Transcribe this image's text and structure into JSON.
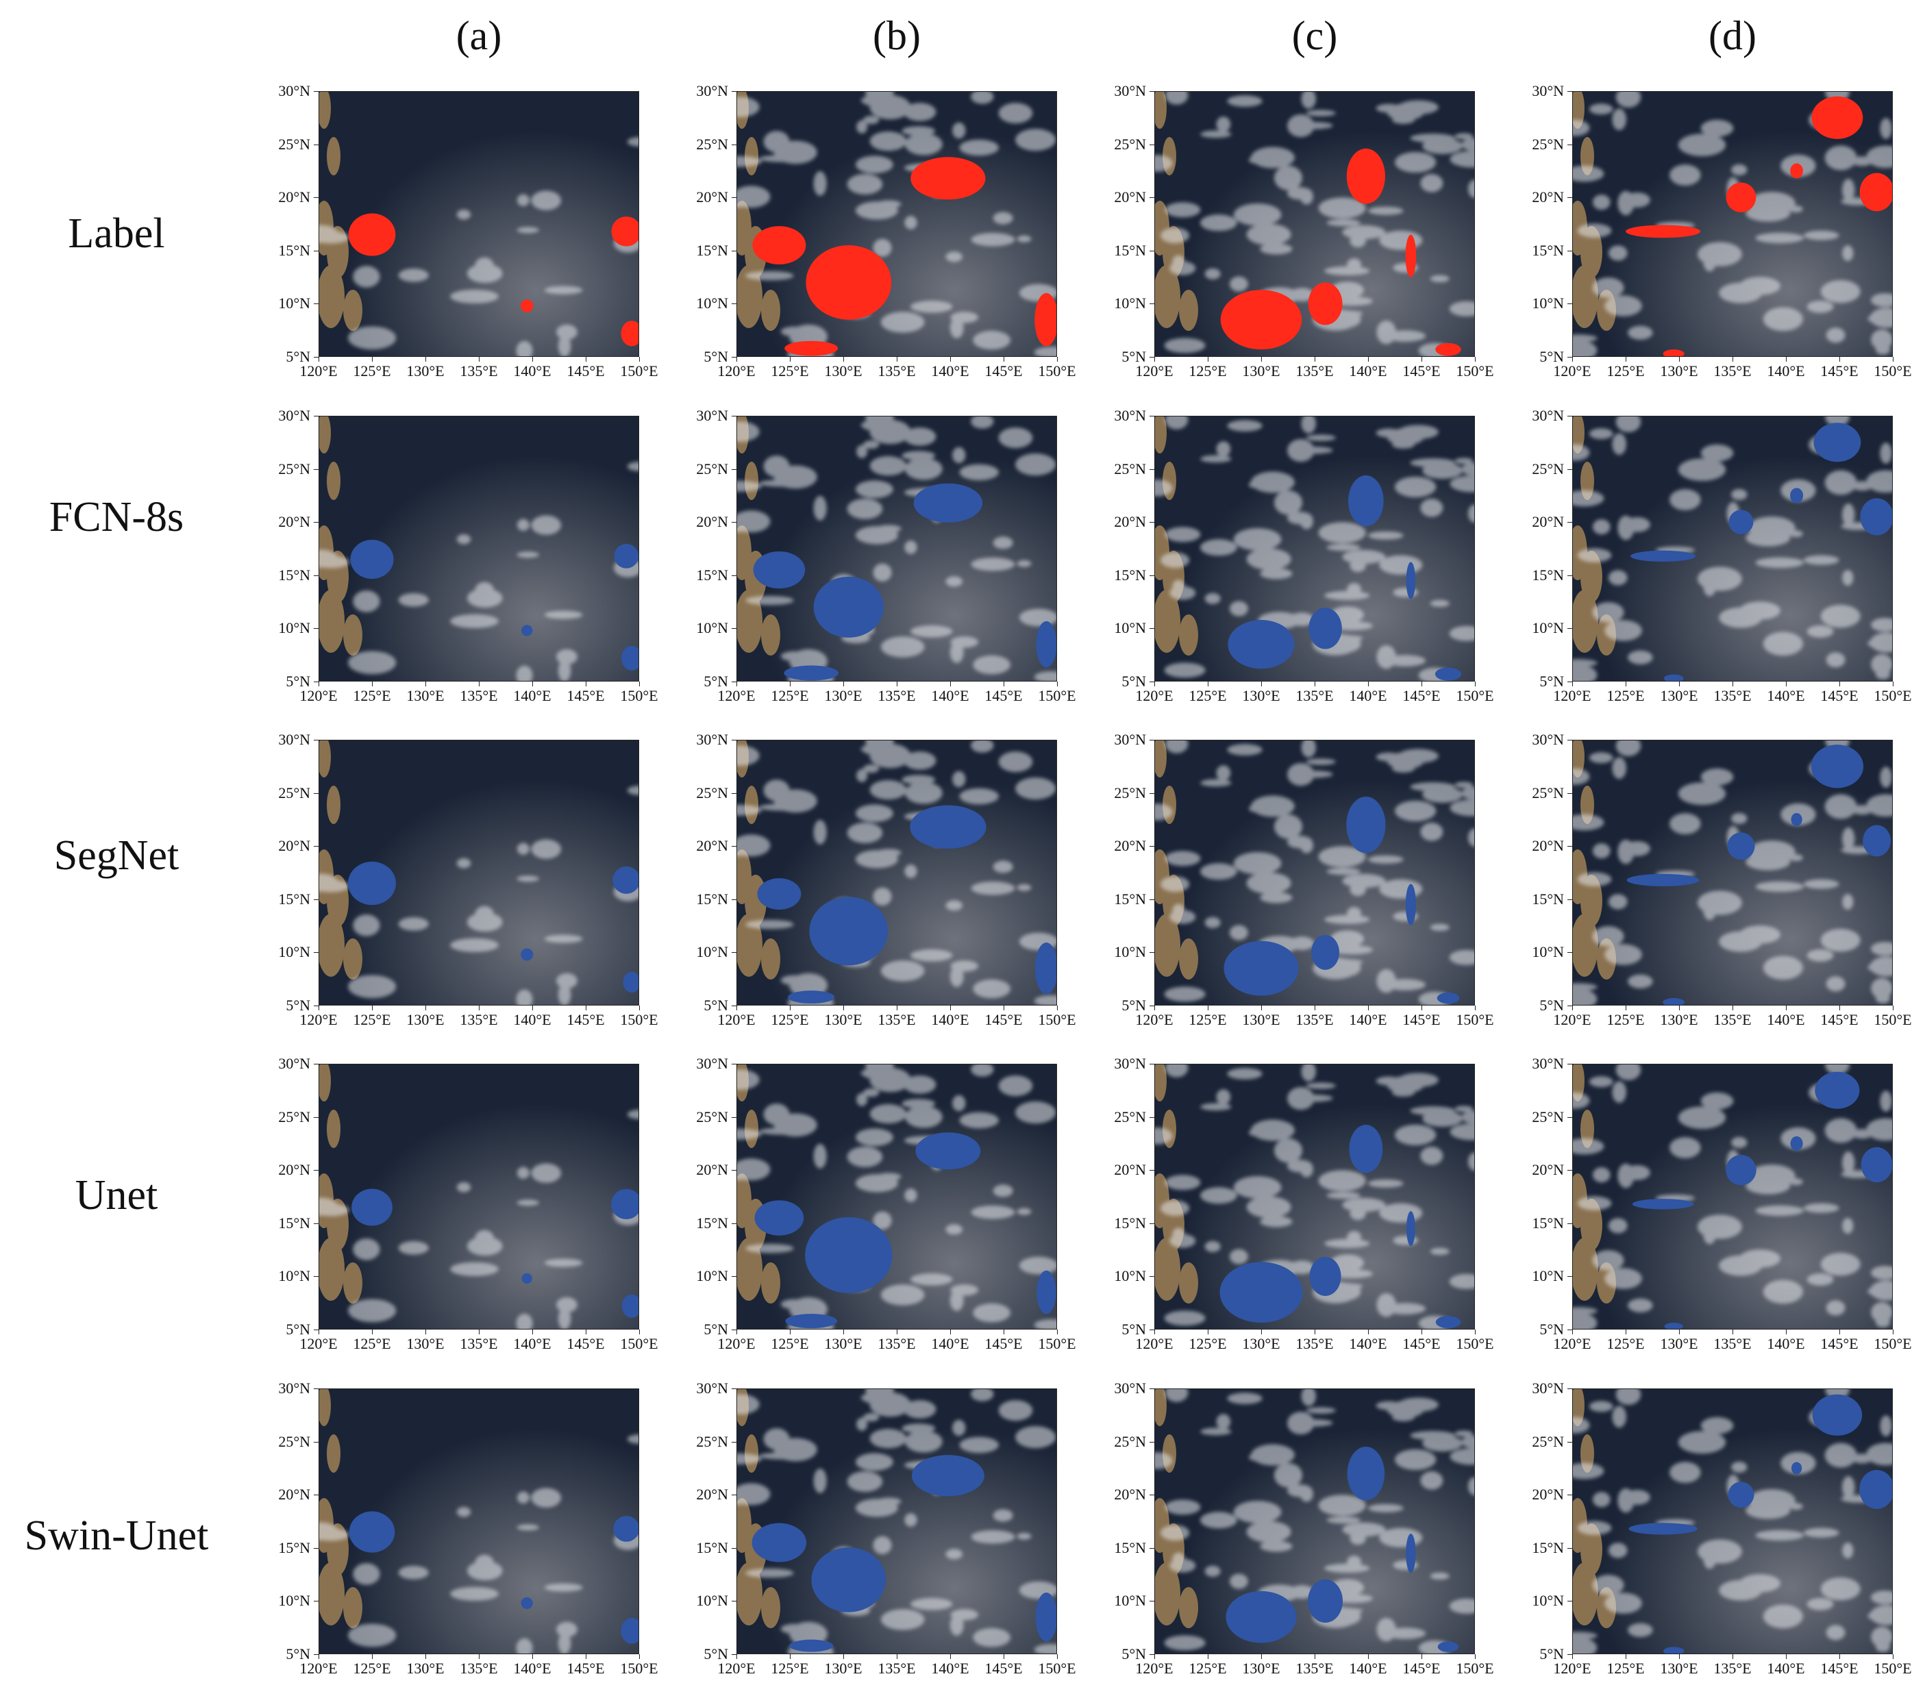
{
  "columns": [
    {
      "label": "(a)"
    },
    {
      "label": "(b)"
    },
    {
      "label": "(c)"
    },
    {
      "label": "(d)"
    }
  ],
  "rows": [
    {
      "label": "Label",
      "mask_color": "#ff2a1a"
    },
    {
      "label": "FCN-8s",
      "mask_color": "#2f55a4"
    },
    {
      "label": "SegNet",
      "mask_color": "#2f55a4"
    },
    {
      "label": "Unet",
      "mask_color": "#2f55a4"
    },
    {
      "label": "Swin-Unet",
      "mask_color": "#2f55a4"
    }
  ],
  "axes": {
    "lat_ticks": [
      "30°N",
      "25°N",
      "20°N",
      "15°N",
      "10°N",
      "5°N"
    ],
    "lon_ticks": [
      "120°E",
      "125°E",
      "130°E",
      "135°E",
      "140°E",
      "145°E",
      "150°E"
    ],
    "lat_range": [
      5,
      30
    ],
    "lon_range": [
      120,
      150
    ]
  },
  "colors": {
    "ocean": "#1a2436",
    "land": "#8a7250",
    "cloud": "#e6e8ec",
    "haze": "#7d8088"
  },
  "cases": [
    {
      "regions": [
        {
          "lon": 125.0,
          "lat": 16.5,
          "rx": 2.2,
          "ry": 2.0
        },
        {
          "lon": 148.8,
          "lat": 16.8,
          "rx": 1.4,
          "ry": 1.4
        },
        {
          "lon": 149.3,
          "lat": 7.2,
          "rx": 1.0,
          "ry": 1.2
        },
        {
          "lon": 139.5,
          "lat": 9.8,
          "rx": 0.6,
          "ry": 0.6
        }
      ]
    },
    {
      "regions": [
        {
          "lon": 139.8,
          "lat": 21.8,
          "rx": 3.5,
          "ry": 2.0
        },
        {
          "lon": 130.5,
          "lat": 12.0,
          "rx": 4.0,
          "ry": 3.5
        },
        {
          "lon": 124.0,
          "lat": 15.5,
          "rx": 2.5,
          "ry": 1.8
        },
        {
          "lon": 149.0,
          "lat": 8.5,
          "rx": 1.1,
          "ry": 2.5
        },
        {
          "lon": 127.0,
          "lat": 5.8,
          "rx": 2.5,
          "ry": 0.7
        }
      ]
    },
    {
      "regions": [
        {
          "lon": 139.8,
          "lat": 22.0,
          "rx": 1.8,
          "ry": 2.6
        },
        {
          "lon": 130.0,
          "lat": 8.5,
          "rx": 3.8,
          "ry": 2.8
        },
        {
          "lon": 136.0,
          "lat": 10.0,
          "rx": 1.6,
          "ry": 2.0
        },
        {
          "lon": 144.0,
          "lat": 14.5,
          "rx": 0.5,
          "ry": 2.0
        },
        {
          "lon": 147.5,
          "lat": 5.7,
          "rx": 1.2,
          "ry": 0.6
        }
      ]
    },
    {
      "regions": [
        {
          "lon": 144.8,
          "lat": 27.5,
          "rx": 2.4,
          "ry": 2.0
        },
        {
          "lon": 135.8,
          "lat": 20.0,
          "rx": 1.4,
          "ry": 1.4
        },
        {
          "lon": 148.5,
          "lat": 20.5,
          "rx": 1.6,
          "ry": 1.8
        },
        {
          "lon": 128.5,
          "lat": 16.8,
          "rx": 3.5,
          "ry": 0.6
        },
        {
          "lon": 141.0,
          "lat": 22.5,
          "rx": 0.6,
          "ry": 0.7
        },
        {
          "lon": 129.5,
          "lat": 5.3,
          "rx": 1.0,
          "ry": 0.4
        }
      ]
    }
  ]
}
